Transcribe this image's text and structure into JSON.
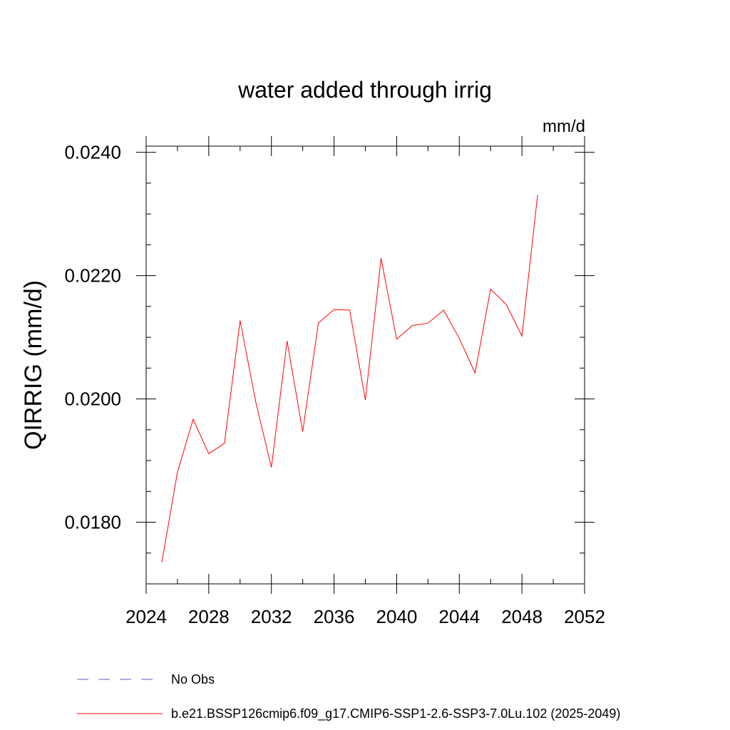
{
  "chart_data": {
    "type": "line",
    "title": "water added through irrig",
    "units": "mm/d",
    "ylabel": "QIRRIG  (mm/d)",
    "xlabel": "",
    "xlim": [
      2024,
      2052
    ],
    "ylim": [
      0.017,
      0.0241
    ],
    "x_ticks": [
      2024,
      2028,
      2032,
      2036,
      2040,
      2044,
      2048,
      2052
    ],
    "x_tick_labels": [
      "2024",
      "2028",
      "2032",
      "2036",
      "2040",
      "2044",
      "2048",
      "2052"
    ],
    "x_minor_ticks": [
      2026,
      2030,
      2034,
      2038,
      2042,
      2046,
      2050
    ],
    "y_ticks": [
      0.018,
      0.02,
      0.022,
      0.024
    ],
    "y_tick_labels": [
      "0.0180",
      "0.0200",
      "0.0220",
      "0.0240"
    ],
    "y_minor_ticks": [
      0.0175,
      0.0185,
      0.019,
      0.0195,
      0.0205,
      0.021,
      0.0215,
      0.0225,
      0.023,
      0.0235
    ],
    "grid": false,
    "legend_position": "bottom",
    "series": [
      {
        "name": "b.e21.BSSP126cmip6.f09_g17.CMIP6-SSP1-2.6-SSP3-7.0Lu.102 (2025-2049)",
        "color": "#ff0000",
        "style": "solid",
        "x": [
          2025,
          2026,
          2027,
          2028,
          2029,
          2030,
          2031,
          2032,
          2033,
          2034,
          2035,
          2036,
          2037,
          2038,
          2039,
          2040,
          2041,
          2042,
          2043,
          2044,
          2045,
          2046,
          2047,
          2048,
          2049
        ],
        "y": [
          0.01735,
          0.01881,
          0.01967,
          0.01911,
          0.01928,
          0.02127,
          0.01995,
          0.01889,
          0.02094,
          0.01947,
          0.02123,
          0.02145,
          0.02144,
          0.01998,
          0.02228,
          0.02097,
          0.02119,
          0.02123,
          0.02144,
          0.02098,
          0.02042,
          0.02178,
          0.02153,
          0.02102,
          0.02331
        ]
      }
    ],
    "legend": [
      {
        "label": "No Obs",
        "color": "#6a5acd",
        "style": "dashed"
      },
      {
        "label": "b.e21.BSSP126cmip6.f09_g17.CMIP6-SSP1-2.6-SSP3-7.0Lu.102 (2025-2049)",
        "color": "#ff0000",
        "style": "solid"
      }
    ]
  }
}
